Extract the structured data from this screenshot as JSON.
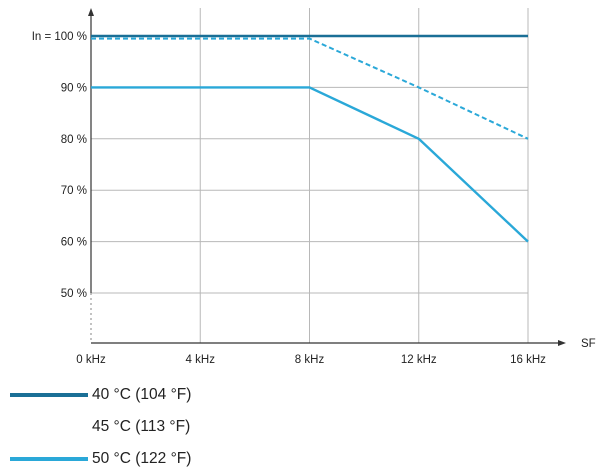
{
  "chart_data": {
    "type": "line",
    "title": "",
    "xlabel": "SF",
    "ylabel": "",
    "x": [
      0,
      4,
      8,
      12,
      16
    ],
    "x_tick_labels": [
      "0 kHz",
      "4 kHz",
      "8 kHz",
      "12 kHz",
      "16 kHz"
    ],
    "y_tick_labels": [
      "In = 100 %",
      "90 %",
      "80 %",
      "70 %",
      "60 %",
      "50 %"
    ],
    "y_ticks": [
      100,
      90,
      80,
      70,
      60,
      50
    ],
    "xlim": [
      0,
      16
    ],
    "ylim": [
      45,
      100
    ],
    "grid": true,
    "legend_placement": "bottom-left",
    "series": [
      {
        "name": "40 °C (104 °F)",
        "style": "solid",
        "color": "#1a6f96",
        "points": [
          [
            0,
            100
          ],
          [
            4,
            100
          ],
          [
            8,
            100
          ],
          [
            12,
            100
          ],
          [
            16,
            100
          ]
        ]
      },
      {
        "name": "45 °C (113 °F)",
        "style": "dashed",
        "color": "#2aa8d8",
        "points": [
          [
            0,
            99.5
          ],
          [
            4,
            99.5
          ],
          [
            8,
            99.5
          ],
          [
            12,
            90
          ],
          [
            16,
            80
          ]
        ]
      },
      {
        "name": "50 °C (122 °F)",
        "style": "solid",
        "color": "#2aa8d8",
        "points": [
          [
            0,
            90
          ],
          [
            4,
            90
          ],
          [
            8,
            90
          ],
          [
            12,
            80
          ],
          [
            16,
            60
          ]
        ]
      }
    ]
  }
}
